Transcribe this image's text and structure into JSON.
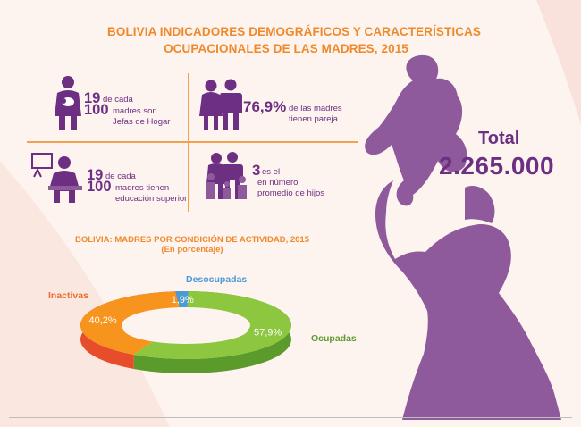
{
  "title": {
    "line1": "BOLIVIA INDICADORES DEMOGRÁFICOS Y CARACTERÍSTICAS",
    "line2": "OCUPACIONALES DE LAS MADRES, 2015"
  },
  "stats": {
    "jefas": {
      "num1": "19",
      "num2": "100",
      "text1": "de cada",
      "text2": "madres son",
      "text3": "Jefas de Hogar"
    },
    "pareja": {
      "value": "76,9%",
      "text1": "de las madres",
      "text2": "tienen pareja"
    },
    "educacion": {
      "num1": "19",
      "num2": "100",
      "text1": "de cada",
      "text2": "madres tienen",
      "text3": "educación superior"
    },
    "hijos": {
      "value": "3",
      "text1": "es el",
      "text2": "en número",
      "text3": "promedio de hijos"
    }
  },
  "total": {
    "label": "Total",
    "value": "2.265.000"
  },
  "chart_data": {
    "type": "pie",
    "title": "BOLIVIA: MADRES POR CONDICIÓN DE ACTIVIDAD, 2015",
    "subtitle": "(En porcentaje)",
    "categories": [
      "Ocupadas",
      "Inactivas",
      "Desocupadas"
    ],
    "values": [
      57.9,
      40.2,
      1.9
    ],
    "value_labels": [
      "57,9%",
      "40,2%",
      "1,9%"
    ],
    "colors": [
      "#8dc63f",
      "#f7941d",
      "#4a9ad4"
    ],
    "inner_colors": [
      "#5b9b2c",
      "#e74c2b",
      "#2f6fb2"
    ],
    "style": "3d-donut"
  },
  "colors": {
    "purple": "#6c2f82",
    "silhouette": "#8e5a9c",
    "orange": "#ef8a2c",
    "background": "#fdf3ef"
  }
}
